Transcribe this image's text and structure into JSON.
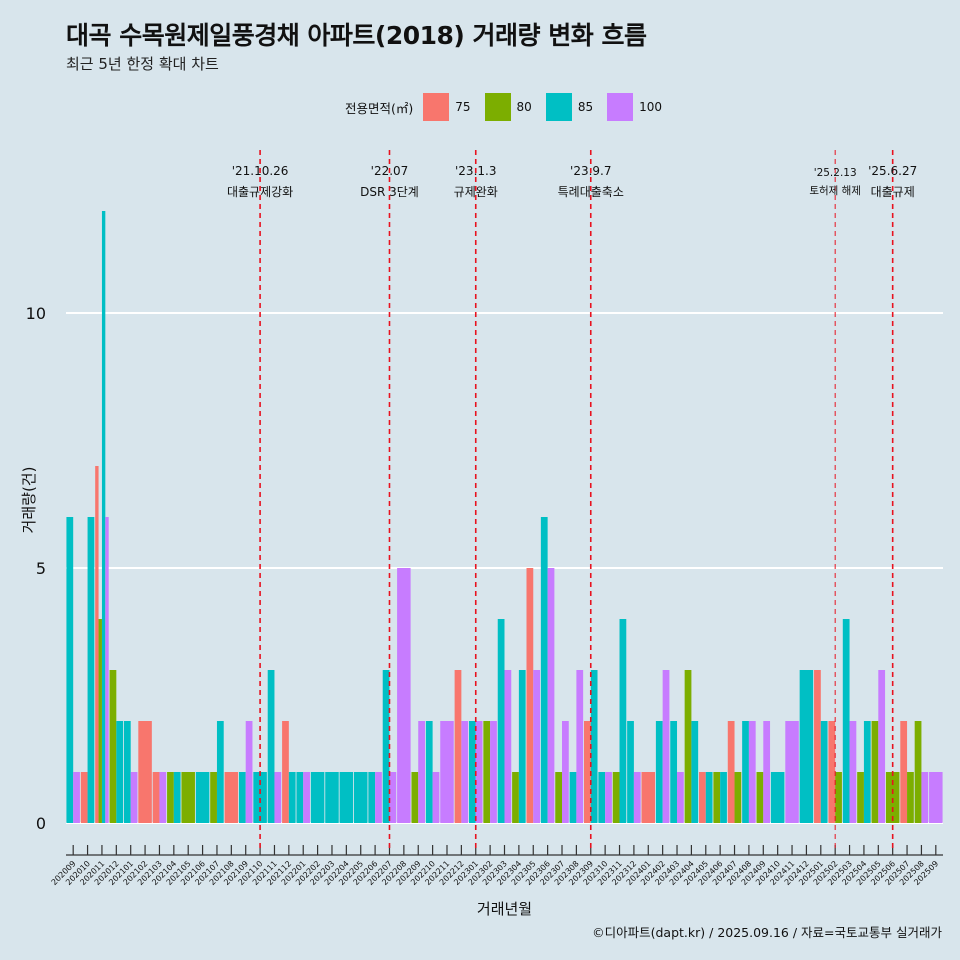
{
  "title": "대곡 수목원제일풍경채 아파트(2018) 거래량 변화 흐름",
  "subtitle": "최근 5년 한정 확대 차트",
  "caption": "©디아파트(dapt.kr) / 2025.09.16 / 자료=국토교통부 실거래가",
  "legend": {
    "title": "전용면적(㎡)"
  },
  "colors": {
    "75": "#f8766d",
    "80": "#7cae00",
    "85": "#00bfc4",
    "100": "#c77cff",
    "event_line": "#e8121f",
    "grid": "#ffffff",
    "background": "#d8e5ec"
  },
  "chart_data": {
    "type": "bar",
    "xlabel": "거래년월",
    "ylabel": "거래량(건)",
    "ylim": [
      0,
      12
    ],
    "yticks": [
      0,
      5,
      10
    ],
    "grid": true,
    "legend_position": "top",
    "series": [
      {
        "name": "75",
        "color": "#f8766d"
      },
      {
        "name": "80",
        "color": "#7cae00"
      },
      {
        "name": "85",
        "color": "#00bfc4"
      },
      {
        "name": "100",
        "color": "#c77cff"
      }
    ],
    "categories": [
      "202009",
      "202010",
      "202011",
      "202012",
      "202101",
      "202102",
      "202103",
      "202104",
      "202105",
      "202106",
      "202107",
      "202108",
      "202109",
      "202110",
      "202111",
      "202112",
      "202201",
      "202202",
      "202203",
      "202204",
      "202205",
      "202206",
      "202207",
      "202208",
      "202209",
      "202210",
      "202211",
      "202212",
      "202301",
      "202302",
      "202303",
      "202304",
      "202305",
      "202306",
      "202307",
      "202308",
      "202309",
      "202310",
      "202311",
      "202312",
      "202401",
      "202402",
      "202403",
      "202404",
      "202405",
      "202406",
      "202407",
      "202408",
      "202409",
      "202410",
      "202411",
      "202412",
      "202501",
      "202502",
      "202503",
      "202504",
      "202505",
      "202506",
      "202507",
      "202508",
      "202509"
    ],
    "data": [
      {
        "month": "202009",
        "85": 6,
        "100": 1
      },
      {
        "month": "202010",
        "75": 1,
        "85": 6
      },
      {
        "month": "202011",
        "75": 7,
        "80": 4,
        "85": 12,
        "100": 6
      },
      {
        "month": "202012",
        "80": 3,
        "85": 2
      },
      {
        "month": "202101",
        "85": 2,
        "100": 1
      },
      {
        "month": "202102",
        "75": 2
      },
      {
        "month": "202103",
        "75": 1,
        "100": 1
      },
      {
        "month": "202104",
        "80": 1,
        "85": 1
      },
      {
        "month": "202105",
        "80": 1
      },
      {
        "month": "202106",
        "85": 1
      },
      {
        "month": "202107",
        "80": 1,
        "85": 2
      },
      {
        "month": "202108",
        "75": 1
      },
      {
        "month": "202109",
        "85": 1,
        "100": 2
      },
      {
        "month": "202110",
        "85": 1
      },
      {
        "month": "202111",
        "85": 3,
        "100": 1
      },
      {
        "month": "202112",
        "85": 1,
        "75": 2
      },
      {
        "month": "202201",
        "85": 1,
        "100": 1
      },
      {
        "month": "202202",
        "85": 1
      },
      {
        "month": "202203",
        "85": 1
      },
      {
        "month": "202204",
        "85": 1
      },
      {
        "month": "202205",
        "85": 1
      },
      {
        "month": "202206",
        "85": 1,
        "100": 1
      },
      {
        "month": "202207",
        "85": 3,
        "100": 1
      },
      {
        "month": "202208",
        "100": 5
      },
      {
        "month": "202209",
        "80": 1,
        "100": 2
      },
      {
        "month": "202210",
        "85": 2,
        "100": 1
      },
      {
        "month": "202211",
        "100": 2
      },
      {
        "month": "202212",
        "75": 3,
        "100": 2
      },
      {
        "month": "202301",
        "85": 2,
        "100": 2
      },
      {
        "month": "202302",
        "80": 2,
        "100": 2
      },
      {
        "month": "202303",
        "85": 4,
        "100": 3
      },
      {
        "month": "202304",
        "80": 1,
        "85": 3
      },
      {
        "month": "202305",
        "75": 5,
        "100": 3
      },
      {
        "month": "202306",
        "85": 6,
        "100": 5
      },
      {
        "month": "202307",
        "80": 1,
        "100": 2
      },
      {
        "month": "202308",
        "85": 1,
        "100": 3
      },
      {
        "month": "202309",
        "75": 2,
        "85": 3
      },
      {
        "month": "202310",
        "85": 1,
        "100": 1
      },
      {
        "month": "202311",
        "80": 1,
        "85": 4
      },
      {
        "month": "202312",
        "85": 2,
        "100": 1
      },
      {
        "month": "202401",
        "75": 1
      },
      {
        "month": "202402",
        "85": 2,
        "100": 3
      },
      {
        "month": "202403",
        "85": 2,
        "100": 1
      },
      {
        "month": "202404",
        "80": 3,
        "85": 2
      },
      {
        "month": "202405",
        "75": 1,
        "85": 1
      },
      {
        "month": "202406",
        "80": 1,
        "85": 1
      },
      {
        "month": "202407",
        "75": 2,
        "80": 1
      },
      {
        "month": "202408",
        "85": 2,
        "100": 2
      },
      {
        "month": "202409",
        "80": 1,
        "100": 2
      },
      {
        "month": "202410",
        "85": 1
      },
      {
        "month": "202411",
        "100": 2
      },
      {
        "month": "202412",
        "85": 3
      },
      {
        "month": "202501",
        "75": 3,
        "85": 2
      },
      {
        "month": "202502",
        "75": 2,
        "80": 1
      },
      {
        "month": "202503",
        "85": 4,
        "100": 2
      },
      {
        "month": "202504",
        "80": 1,
        "85": 2
      },
      {
        "month": "202505",
        "80": 2,
        "100": 3
      },
      {
        "month": "202506",
        "80": 1
      },
      {
        "month": "202507",
        "75": 2,
        "80": 1
      },
      {
        "month": "202508",
        "80": 2,
        "100": 1
      },
      {
        "month": "202509",
        "100": 1
      }
    ],
    "events": [
      {
        "month": "202110",
        "date": "'21.10.26",
        "label": "대출규제강화"
      },
      {
        "month": "202207",
        "date": "'22.07",
        "label": "DSR 3단계"
      },
      {
        "month": "202301",
        "date": "'23.1.3",
        "label": "규제완화"
      },
      {
        "month": "202309",
        "date": "'23.9.7",
        "label": "특례대출축소"
      },
      {
        "month": "202502",
        "date": "'25.2.13",
        "label": "토허제 해제"
      },
      {
        "month": "202506",
        "date": "'25.6.27",
        "label": "대출규제"
      }
    ]
  }
}
